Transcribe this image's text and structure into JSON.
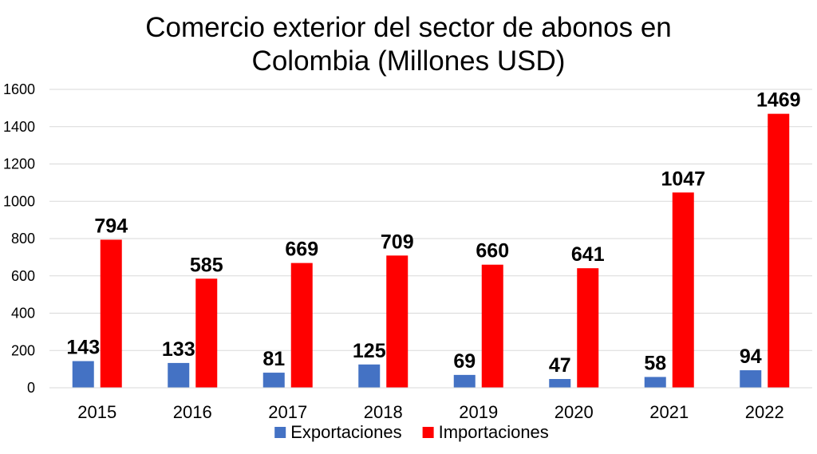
{
  "chart_data": {
    "type": "bar",
    "title_line1": "Comercio exterior del sector de abonos en",
    "title_line2": "Colombia (Millones USD)",
    "categories": [
      "2015",
      "2016",
      "2017",
      "2018",
      "2019",
      "2020",
      "2021",
      "2022"
    ],
    "series": [
      {
        "name": "Exportaciones",
        "color": "#4472c4",
        "values": [
          143,
          133,
          81,
          125,
          69,
          47,
          58,
          94
        ]
      },
      {
        "name": "Importaciones",
        "color": "#ff0000",
        "values": [
          794,
          585,
          669,
          709,
          660,
          641,
          1047,
          1469
        ]
      }
    ],
    "ylim": [
      0,
      1600
    ],
    "yticks": [
      "0",
      "200",
      "400",
      "600",
      "800",
      "1000",
      "1200",
      "1400",
      "1600"
    ],
    "grid": true,
    "gridColor": "#d9d9d9",
    "legend": "bottom",
    "data_labels": true
  }
}
